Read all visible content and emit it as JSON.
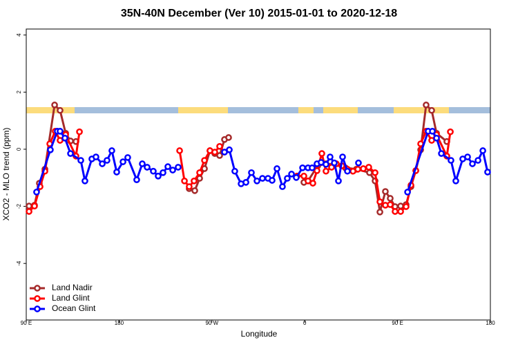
{
  "chart_data": {
    "type": "line",
    "title": "35N-40N December (Ver 10)   2015-01-01 to 2020-12-18",
    "x_label": "Longitude",
    "y_label": "XCO2 - MLO trend (ppm)",
    "xlim": [
      90,
      540
    ],
    "xticks": [
      {
        "value": 90,
        "label": "90 E"
      },
      180,
      {
        "value": 270,
        "label": "90 W"
      },
      {
        "value": 360,
        "label": "0"
      },
      {
        "value": 450,
        "label": "90 E"
      },
      {
        "value": 540,
        "label": "180"
      }
    ],
    "ylim": [
      -5.98,
      4.21
    ],
    "yticks": [
      -4,
      -2,
      0,
      2,
      4
    ],
    "legend": "bottom-left",
    "series": [
      {
        "name": "Land Nadir",
        "color": "#a52a2a",
        "x": [
          92.7,
          98,
          102.7,
          108.1,
          117.5,
          122.8,
          128.2,
          132.9,
          138.2,
          null,
          248,
          253.4,
          258.1,
          262.8,
          268.1,
          272.8,
          277.5,
          282.2,
          286.2,
          null,
          359.2,
          363.2,
          372.6,
          380.6,
          388.7,
          399.4,
          410.1,
          422.8,
          428.2,
          432.9,
          438.2,
          442.9,
          447.6,
          453,
          458.3,
          463,
          467.7,
          472.4,
          477.7,
          483.1,
          487.8,
          497.8
        ],
        "values": [
          -1.99,
          -1.96,
          -1.19,
          -0.7,
          1.55,
          1.36,
          0.56,
          0.29,
          0.27,
          null,
          -1.38,
          -1.45,
          -1.02,
          -0.68,
          -0.05,
          -0.15,
          -0.22,
          0.34,
          0.41,
          null,
          -1.16,
          -1.11,
          -0.58,
          -0.51,
          -0.53,
          -0.65,
          -0.7,
          -0.82,
          -1.11,
          -2.2,
          -1.48,
          -1.72,
          -2.01,
          -1.99,
          -1.94,
          -1.31,
          -0.75,
          -0.02,
          1.55,
          1.36,
          0.56,
          0.27
        ]
      },
      {
        "name": "Land Glint",
        "color": "#ff0000",
        "x": [
          92.7,
          98,
          103.4,
          108.1,
          112.8,
          118.1,
          122.8,
          128.2,
          138.2,
          141.6,
          null,
          238.7,
          243.4,
          248,
          252.7,
          258.1,
          262.8,
          268.1,
          272.8,
          277.5,
          282.2,
          null,
          352.5,
          359.2,
          363.2,
          367.9,
          371.9,
          376.6,
          380.6,
          386,
          390.7,
          396,
          401.4,
          406.8,
          411.5,
          416.8,
          422.1,
          428.2,
          432.9,
          438.2,
          442.9,
          447.6,
          453,
          458.3,
          463,
          467.7,
          472.4,
          477.7,
          483.1,
          487.8,
          497.8,
          501.2
        ],
        "values": [
          -2.18,
          -1.99,
          -1.31,
          -0.77,
          0.19,
          0.63,
          0.31,
          0.51,
          -0.24,
          0.61,
          null,
          -0.05,
          -1.11,
          -1.31,
          -1.11,
          -0.82,
          -0.39,
          -0.05,
          -0.1,
          0.1,
          -0.1,
          null,
          -0.94,
          -0.94,
          -1.11,
          -1.19,
          -0.75,
          -0.15,
          -0.77,
          -0.63,
          -0.51,
          -0.58,
          -0.7,
          -0.77,
          -0.7,
          -0.68,
          -0.63,
          -0.82,
          -1.84,
          -1.96,
          -1.94,
          -2.18,
          -2.18,
          -2.01,
          -1.26,
          -0.75,
          0.19,
          0.63,
          0.31,
          0.51,
          -0.24,
          0.61
        ]
      },
      {
        "name": "Ocean Glint",
        "color": "#0000ff",
        "x": [
          100,
          113.4,
          120.1,
          122.8,
          127.5,
          132.9,
          142.9,
          146.9,
          153.6,
          157.6,
          163.7,
          168.3,
          173,
          177.7,
          183.8,
          188.4,
          197.1,
          202.5,
          207.2,
          213.2,
          217.9,
          222.6,
          227.3,
          232,
          237.3,
          null,
          282.2,
          286.9,
          292.2,
          298.3,
          303,
          308.3,
          313.7,
          319,
          324.4,
          328.4,
          333.1,
          338.4,
          343.1,
          347.2,
          351.8,
          357.9,
          363.2,
          367.2,
          371.9,
          375.9,
          380.6,
          384.6,
          388.7,
          392.7,
          396.7,
          401.4,
          null,
          412.1,
          null,
          459.7,
          479.7,
          483.8,
          487.8,
          492.5,
          501.8,
          506.5,
          513.2,
          517.9,
          522.6,
          528,
          532.7,
          537.3
        ],
        "values": [
          -1.5,
          -0.02,
          0.63,
          0.63,
          0.39,
          -0.15,
          -0.39,
          -1.11,
          -0.34,
          -0.27,
          -0.51,
          -0.39,
          -0.05,
          -0.8,
          -0.44,
          -0.29,
          -1.07,
          -0.51,
          -0.63,
          -0.77,
          -0.94,
          -0.82,
          -0.61,
          -0.73,
          -0.63,
          null,
          -0.1,
          -0.02,
          -0.77,
          -1.21,
          -1.16,
          -0.82,
          -1.11,
          -1.02,
          -1.02,
          -1.09,
          -0.68,
          -1.31,
          -1.02,
          -0.87,
          -0.99,
          -0.65,
          -0.65,
          -0.65,
          -0.51,
          -0.46,
          -0.53,
          -0.27,
          -0.48,
          -1.11,
          -0.27,
          -0.77,
          null,
          -0.48,
          null,
          -1.5,
          0.63,
          0.63,
          0.39,
          -0.15,
          -0.39,
          -1.11,
          -0.34,
          -0.27,
          -0.51,
          -0.39,
          -0.05,
          -0.8
        ]
      }
    ]
  }
}
